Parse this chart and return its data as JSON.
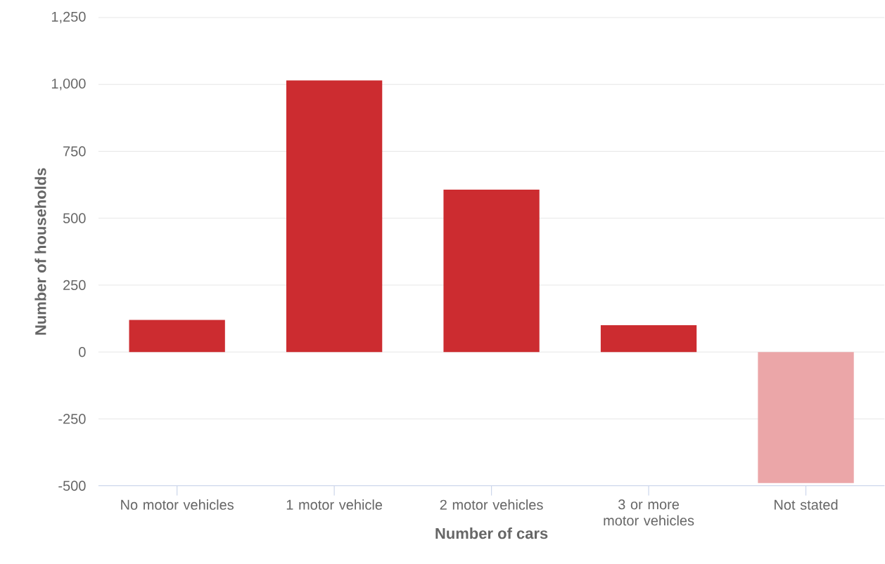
{
  "chart_data": {
    "type": "bar",
    "xlabel": "Number of cars",
    "ylabel": "Number of households",
    "categories": [
      "No motor vehicles",
      "1 motor vehicle",
      "2 motor vehicles",
      "3 or more motor vehicles",
      "Not stated"
    ],
    "values": [
      120,
      1015,
      607,
      100,
      -490
    ],
    "colors": [
      "#cc2c30",
      "#cc2c30",
      "#cc2c30",
      "#cc2c30",
      "#eba6a8"
    ],
    "ylim": [
      -500,
      1250
    ],
    "yticks": [
      -500,
      -250,
      0,
      250,
      500,
      750,
      {
        "value": 1000,
        "label": "1,000"
      },
      {
        "value": 1250,
        "label": "1,250"
      }
    ],
    "grid": "y"
  }
}
